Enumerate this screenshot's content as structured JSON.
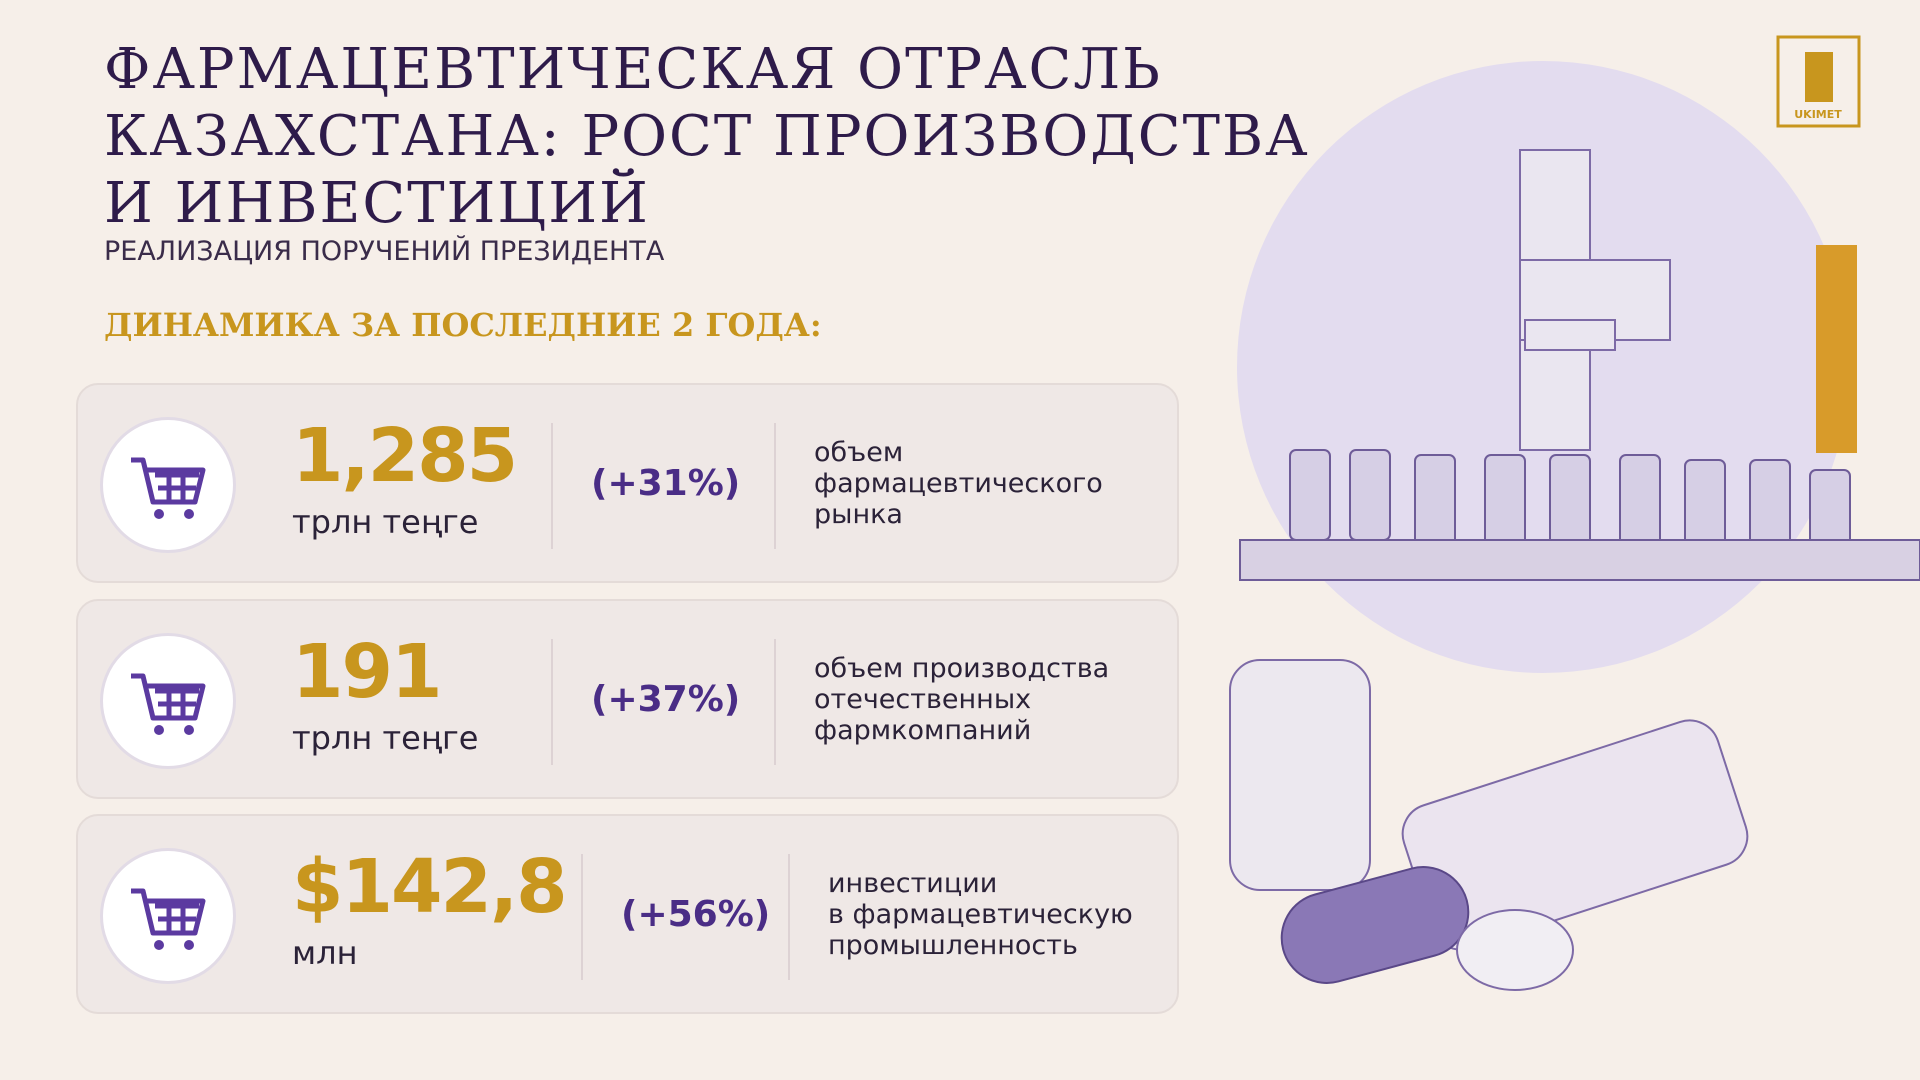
{
  "header": {
    "title": [
      "ФАРМАЦЕВТИЧЕСКАЯ ОТРАСЛЬ",
      "КАЗАХСТАНА: РОСТ ПРОИЗВОДСТВА",
      "И ИНВЕСТИЦИЙ"
    ],
    "subtitle": "РЕАЛИЗАЦИЯ ПОРУЧЕНИЙ ПРЕЗИДЕНТА",
    "section": "ДИНАМИКА ЗА ПОСЛЕДНИЕ 2 ГОДА:"
  },
  "logo": "UKIMET",
  "rows": [
    {
      "value": "1,285",
      "unit": "трлн теңге",
      "change": "(+31%)",
      "description": [
        "объем",
        "фармацевтического",
        "рынка"
      ]
    },
    {
      "value": "191",
      "unit": "трлн теңге",
      "change": "(+37%)",
      "description": [
        "объем производства",
        "отечественных",
        "фармкомпаний"
      ]
    },
    {
      "value": "$142,8",
      "unit": "млн",
      "change": "(+56%)",
      "description": [
        "инвестиции",
        "в фармацевтическую",
        "промышленность"
      ]
    }
  ]
}
